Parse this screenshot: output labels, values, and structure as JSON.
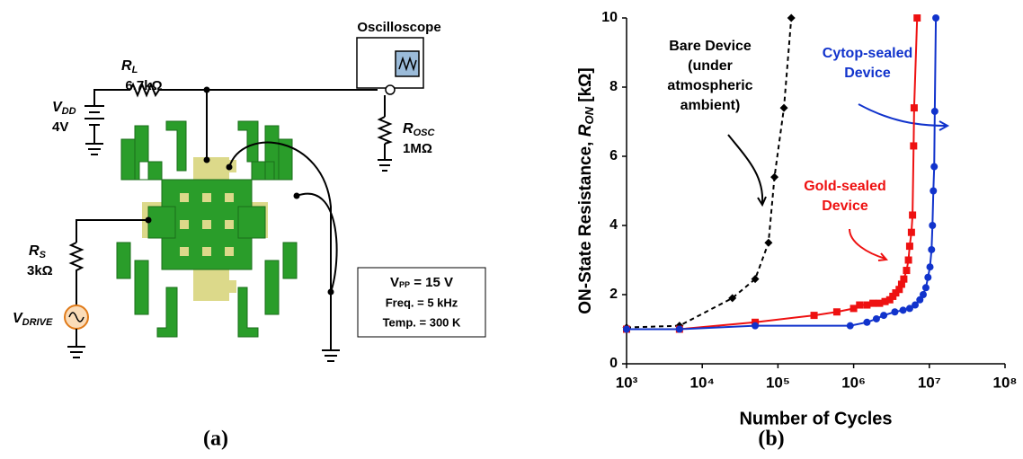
{
  "diagram": {
    "rl": {
      "symbol": "R",
      "sub": "L",
      "value": "6.7kΩ"
    },
    "oscilloscope": "Oscilloscope",
    "vdd": {
      "symbol": "V",
      "sub": "DD",
      "value": "4V"
    },
    "rosc": {
      "symbol": "R",
      "sub": "OSC",
      "value": "1MΩ"
    },
    "rs": {
      "symbol": "R",
      "sub": "S",
      "value": "3kΩ"
    },
    "vdrive": {
      "symbol": "V",
      "sub": "DRIVE"
    },
    "conditions": [
      {
        "symbol": "V",
        "sub": "PP",
        "text": " = 15 V"
      },
      "Freq. = 5 kHz",
      "Temp. = 300 K"
    ],
    "panel_a": "(a)",
    "panel_b": "(b)"
  },
  "chart_data": {
    "type": "line",
    "x_label": "Number of Cycles",
    "y_label": {
      "text": "ON-State Resistance, ",
      "symbol": "R",
      "sub": "ON",
      "unit": " [kΩ]"
    },
    "xscale": "log",
    "xlim": [
      1000,
      100000000
    ],
    "xticks": [
      {
        "value": 1000,
        "label": "10³"
      },
      {
        "value": 10000,
        "label": "10⁴"
      },
      {
        "value": 100000,
        "label": "10⁵"
      },
      {
        "value": 1000000,
        "label": "10⁶"
      },
      {
        "value": 10000000,
        "label": "10⁷"
      },
      {
        "value": 100000000,
        "label": "10⁸"
      }
    ],
    "ylim": [
      0,
      10
    ],
    "yticks": [
      0,
      2,
      4,
      6,
      8,
      10
    ],
    "series": [
      {
        "label_lines": [
          "Bare Device",
          "(under",
          "atmospheric",
          "ambient)"
        ],
        "color": "#000000",
        "dash": true,
        "marker": "diamond",
        "x": [
          1000,
          5000,
          25000,
          50000,
          75000,
          90000,
          120000,
          150000
        ],
        "values": [
          1.05,
          1.1,
          1.9,
          2.45,
          3.5,
          5.4,
          7.4,
          10
        ]
      },
      {
        "label_lines": [
          "Gold-sealed",
          "Device"
        ],
        "color": "#ee1111",
        "dash": false,
        "marker": "square",
        "x": [
          1000,
          5000,
          50000,
          300000,
          600000,
          1000000,
          1200000,
          1500000,
          1800000,
          2200000,
          2600000,
          3000000,
          3300000,
          3600000,
          4000000,
          4300000,
          4600000,
          5000000,
          5300000,
          5500000,
          5800000,
          6000000,
          6200000,
          6300000,
          6900000
        ],
        "values": [
          1.0,
          1.0,
          1.2,
          1.4,
          1.5,
          1.6,
          1.7,
          1.7,
          1.75,
          1.75,
          1.8,
          1.85,
          1.95,
          2.05,
          2.15,
          2.3,
          2.45,
          2.7,
          3.0,
          3.4,
          3.8,
          4.3,
          6.3,
          7.4,
          10
        ]
      },
      {
        "label_lines": [
          "Cytop-sealed",
          "Device"
        ],
        "color": "#1133cc",
        "dash": false,
        "marker": "circle",
        "x": [
          1000,
          5000,
          50000,
          900000,
          1500000,
          2000000,
          2500000,
          3500000,
          4500000,
          5500000,
          6500000,
          7500000,
          8300000,
          9000000,
          9600000,
          10200000,
          10700000,
          11000000,
          11300000,
          11600000,
          11800000,
          12200000
        ],
        "values": [
          1.0,
          1.0,
          1.1,
          1.1,
          1.2,
          1.3,
          1.4,
          1.5,
          1.55,
          1.6,
          1.7,
          1.85,
          2.0,
          2.2,
          2.5,
          2.8,
          3.3,
          4.0,
          5.0,
          5.7,
          7.3,
          10
        ]
      }
    ]
  }
}
